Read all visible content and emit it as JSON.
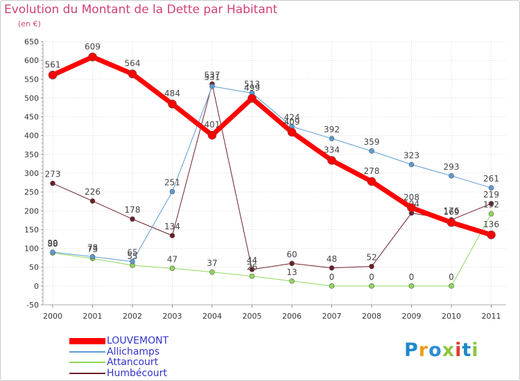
{
  "title": "Evolution du Montant de la Dette par Habitant",
  "unit": "(en €)",
  "logo": {
    "text": "Proxiti",
    "colors": [
      "#1e88c8",
      "#f39a1e",
      "#2c8cd4",
      "#8cc63f",
      "#e03a2e",
      "#1e88c8",
      "#8cc63f"
    ]
  },
  "chart_data": {
    "type": "line",
    "x": [
      "2000",
      "2001",
      "2002",
      "2003",
      "2004",
      "2005",
      "2006",
      "2007",
      "2008",
      "2009",
      "2010",
      "2011"
    ],
    "ylim": [
      -50,
      650
    ],
    "yticks": [
      -50,
      0,
      50,
      100,
      150,
      200,
      250,
      300,
      350,
      400,
      450,
      500,
      550,
      600,
      650
    ],
    "grid": true,
    "legend_position": "bottom-left",
    "series": [
      {
        "name": "Humbécourt",
        "color": "#6e1e2a",
        "width": 1,
        "values": [
          273,
          226,
          178,
          134,
          537,
          44,
          60,
          48,
          52,
          194,
          176,
          219
        ],
        "labels": [
          "273",
          "226",
          "178",
          "134",
          "537",
          "44",
          "60",
          "48",
          "52",
          "194",
          "176",
          "219"
        ]
      },
      {
        "name": "Attancourt",
        "color": "#8fd85a",
        "width": 1,
        "values": [
          88,
          73,
          55,
          47,
          37,
          26,
          13,
          0,
          0,
          0,
          0,
          192
        ],
        "labels": [
          "88",
          "73",
          "55",
          "47",
          "37",
          "26",
          "13",
          "0",
          "0",
          "0",
          "0",
          "192"
        ]
      },
      {
        "name": "Allichamps",
        "color": "#5b9bd5",
        "width": 1,
        "values": [
          90,
          78,
          65,
          251,
          531,
          513,
          424,
          392,
          359,
          323,
          293,
          261
        ],
        "labels": [
          "90",
          "78",
          "65",
          "251",
          "531",
          "513",
          "424",
          "392",
          "359",
          "323",
          "293",
          "261"
        ]
      },
      {
        "name": "LOUVEMONT",
        "color": "#ff0000",
        "width": 7,
        "values": [
          561,
          609,
          564,
          484,
          401,
          499,
          409,
          334,
          278,
          208,
          169,
          136
        ],
        "labels": [
          "561",
          "609",
          "564",
          "484",
          "401",
          "499",
          "409",
          "334",
          "278",
          "208",
          "169",
          "136"
        ]
      }
    ],
    "legend": [
      {
        "name": "LOUVEMONT",
        "color": "#ff0000",
        "text_color": "#3333cc"
      },
      {
        "name": "Allichamps",
        "color": "#5b9bd5",
        "text_color": "#3333cc"
      },
      {
        "name": "Attancourt",
        "color": "#8fd85a",
        "text_color": "#3333cc"
      },
      {
        "name": "Humbécourt",
        "color": "#6e1e2a",
        "text_color": "#3333cc"
      }
    ]
  }
}
